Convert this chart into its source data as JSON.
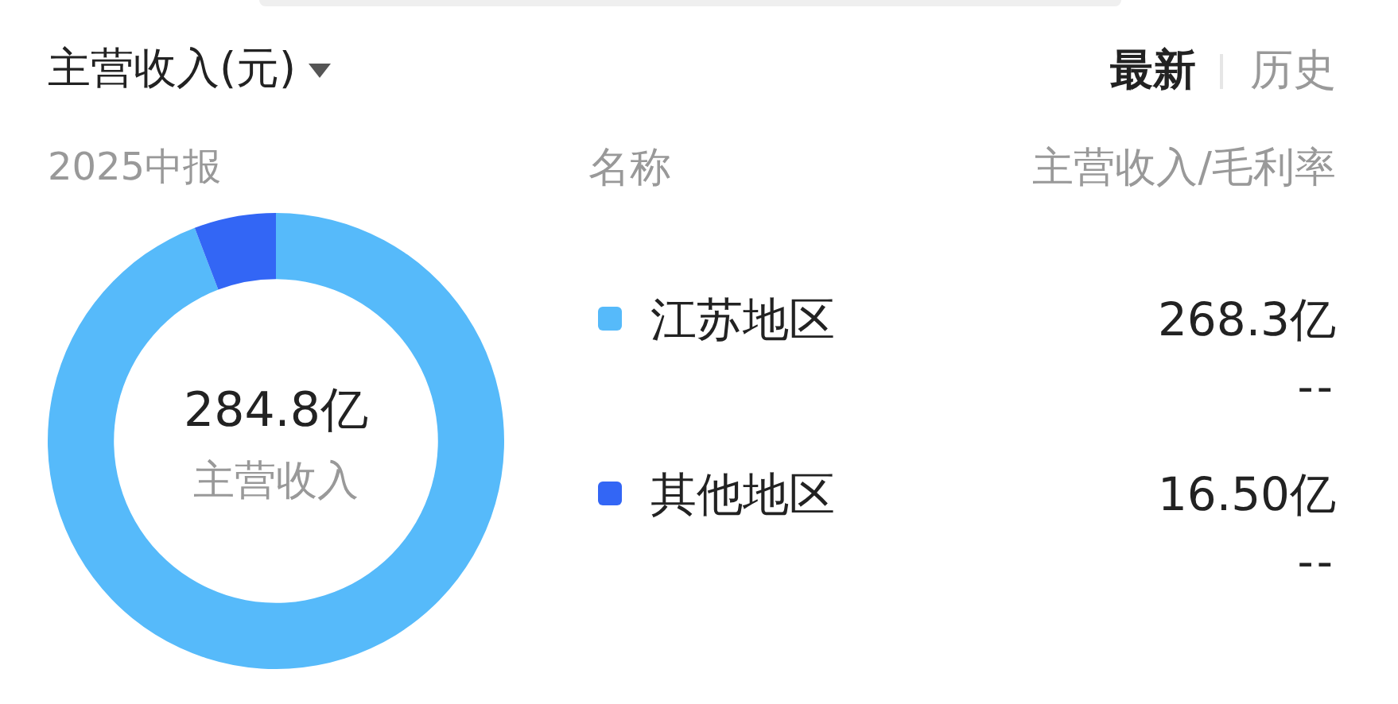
{
  "chart_data": {
    "type": "donut",
    "title": "主营收入(元)",
    "subtitle": "2025中报",
    "legend_title": "名称",
    "categories": [
      "江苏地区",
      "其他地区"
    ],
    "values": [
      268.3,
      16.5
    ],
    "colors": [
      "#56bafa",
      "#3366f5"
    ],
    "value_labels": [
      "268.3亿",
      "16.50亿"
    ],
    "legend": "right",
    "annotations": [
      "最新",
      "历史",
      "主营收入/毛利率",
      "284.8亿",
      "主营收入",
      "--",
      "--"
    ]
  }
}
